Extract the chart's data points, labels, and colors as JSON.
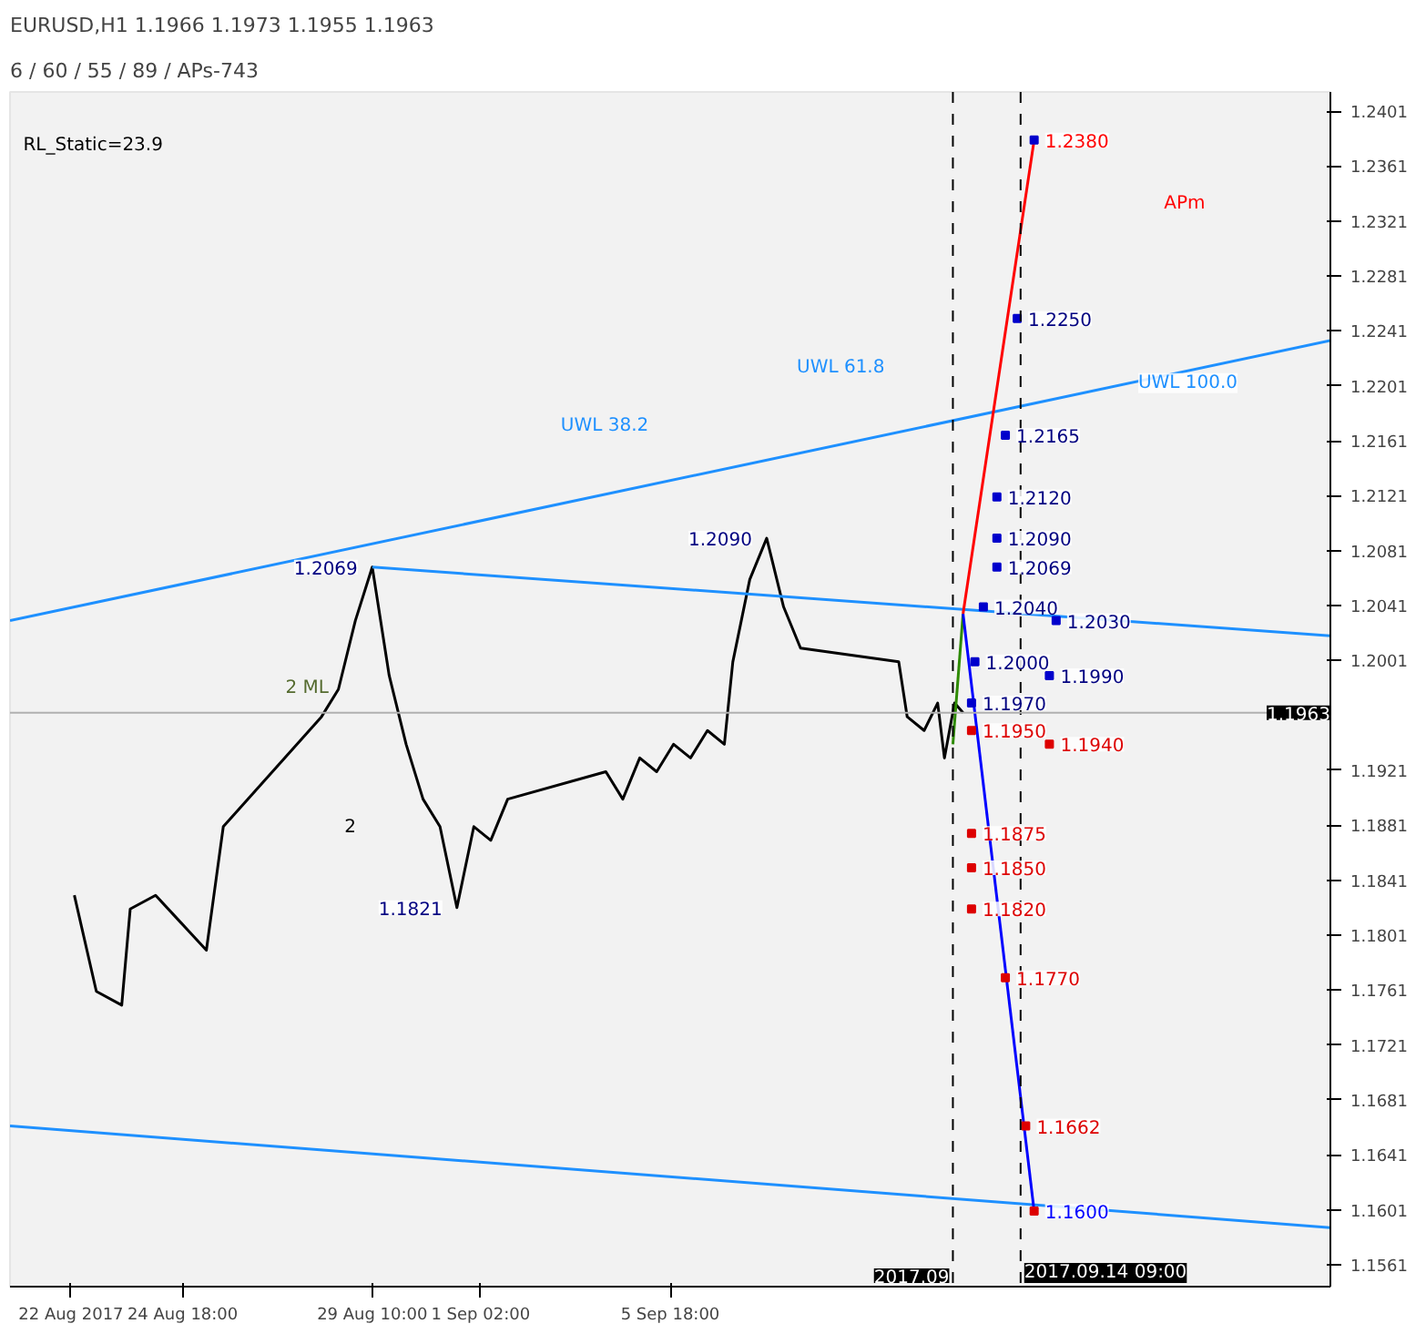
{
  "chart_data": {
    "type": "line",
    "title": "EURUSD,H1  1.1966 1.1973 1.1955 1.1963",
    "subtitle": "6 / 60 / 55 / 89 / APs-743",
    "xlim": [
      "2017-08-20T12:00",
      "2017-09-22T00:00"
    ],
    "xticks": [
      {
        "value": "2017-08-22T00:00",
        "label": "22 Aug 2017"
      },
      {
        "value": "2017-08-24T18:00",
        "label": "24 Aug 18:00"
      },
      {
        "value": "2017-08-29T10:00",
        "label": "29 Aug 10:00"
      },
      {
        "value": "2017-09-01T02:00",
        "label": "1 Sep 02:00"
      },
      {
        "value": "2017-09-05T18:00",
        "label": "5 Sep 18:00"
      }
    ],
    "ylim": [
      1.1545,
      1.2415
    ],
    "yticks": [
      1.2401,
      1.2361,
      1.2321,
      1.2281,
      1.2241,
      1.2201,
      1.2161,
      1.2121,
      1.2081,
      1.2041,
      1.2001,
      1.1921,
      1.1881,
      1.1841,
      1.1801,
      1.1761,
      1.1721,
      1.1681,
      1.1641,
      1.1601,
      1.1561
    ],
    "grid": false,
    "marker": "none",
    "line_style": "solid",
    "series": [
      {
        "color": "#000000",
        "x": [
          "2017-08-22T02:00",
          "2017-08-22T15:00",
          "2017-08-23T06:00",
          "2017-08-23T11:00",
          "2017-08-24T02:00",
          "2017-08-24T17:00",
          "2017-08-25T08:00",
          "2017-08-25T18:00",
          "2017-08-28T04:00",
          "2017-08-28T14:00",
          "2017-08-29T00:00",
          "2017-08-29T10:00",
          "2017-08-29T20:00",
          "2017-08-30T06:00",
          "2017-08-30T16:00",
          "2017-08-31T02:00",
          "2017-08-31T12:00",
          "2017-08-31T22:00",
          "2017-09-01T08:00",
          "2017-09-01T18:00",
          "2017-09-04T04:00",
          "2017-09-04T14:00",
          "2017-09-05T00:00",
          "2017-09-05T10:00",
          "2017-09-05T20:00",
          "2017-09-06T06:00",
          "2017-09-06T16:00",
          "2017-09-07T02:00",
          "2017-09-07T07:00",
          "2017-09-07T17:00",
          "2017-09-08T03:00",
          "2017-09-08T13:00",
          "2017-09-08T23:00",
          "2017-09-11T09:00",
          "2017-09-11T14:00",
          "2017-09-12T00:00",
          "2017-09-12T08:00",
          "2017-09-12T12:00",
          "2017-09-12T18:00",
          "2017-09-12T23:00"
        ],
        "values": [
          1.183,
          1.176,
          1.175,
          1.182,
          1.183,
          1.181,
          1.179,
          1.188,
          1.196,
          1.198,
          1.203,
          1.2069,
          1.199,
          1.194,
          1.19,
          1.188,
          1.1821,
          1.188,
          1.187,
          1.19,
          1.192,
          1.19,
          1.193,
          1.192,
          1.194,
          1.193,
          1.195,
          1.194,
          1.2,
          1.206,
          1.209,
          1.204,
          1.201,
          1.2,
          1.196,
          1.195,
          1.197,
          1.193,
          1.197,
          1.1963
        ]
      },
      {
        "color": "#1e90ff",
        "x": [
          "2017-08-20T12:00",
          "2017-09-22T00:00"
        ],
        "values": [
          1.203,
          1.2234
        ]
      },
      {
        "color": "#1e90ff",
        "x": [
          "2017-08-29T10:00",
          "2017-09-22T00:00"
        ],
        "values": [
          1.2069,
          1.2019
        ]
      },
      {
        "color": "#1e90ff",
        "x": [
          "2017-08-20T12:00",
          "2017-09-22T00:00"
        ],
        "values": [
          1.1662,
          1.1588
        ]
      },
      {
        "color": "#2e8b00",
        "x": [
          "2017-09-12T17:00",
          "2017-09-12T23:00"
        ],
        "values": [
          1.194,
          1.2035
        ]
      },
      {
        "color": "#ff0000",
        "x": [
          "2017-09-12T23:00",
          "2017-09-14T17:00"
        ],
        "values": [
          1.2035,
          1.238
        ]
      },
      {
        "color": "#0000ff",
        "x": [
          "2017-09-12T23:00",
          "2017-09-14T17:00"
        ],
        "values": [
          1.2035,
          1.16
        ]
      },
      {
        "type": "scatter",
        "marker": "square",
        "color": "#0000cc",
        "x": [
          "2017-09-14T17:00",
          "2017-09-14T07:00",
          "2017-09-14T00:00",
          "2017-09-13T19:00",
          "2017-09-13T19:00",
          "2017-09-13T19:00",
          "2017-09-13T11:00",
          "2017-09-15T06:00",
          "2017-09-13T06:00",
          "2017-09-15T02:00",
          "2017-09-13T04:00"
        ],
        "values": [
          1.238,
          1.225,
          1.2165,
          1.212,
          1.209,
          1.2069,
          1.204,
          1.203,
          1.2,
          1.199,
          1.197
        ]
      },
      {
        "type": "scatter",
        "marker": "square",
        "color": "#dd0000",
        "x": [
          "2017-09-13T04:00",
          "2017-09-15T02:00",
          "2017-09-13T04:00",
          "2017-09-13T04:00",
          "2017-09-13T04:00",
          "2017-09-14T00:00",
          "2017-09-14T12:00",
          "2017-09-14T17:00"
        ],
        "values": [
          1.195,
          1.194,
          1.1875,
          1.185,
          1.182,
          1.177,
          1.1662,
          1.16
        ]
      }
    ],
    "ref_lines": [
      {
        "axis": "x",
        "value": "2017-09-12T17:00",
        "label": "2017.09",
        "line_style": "dashed",
        "color": "#000000"
      },
      {
        "axis": "x",
        "value": "2017-09-14T09:00",
        "label": "2017.09.14 09:00",
        "line_style": "dashed",
        "color": "#000000"
      },
      {
        "axis": "y",
        "value": 1.1963,
        "label": "1.1963",
        "color": "#b0b0b0"
      }
    ],
    "annotations": [
      "RL_Static=23.9",
      "APm",
      "UWL 61.8",
      "UWL 38.2",
      "2 ML",
      "2",
      {
        "text": "UWL 100.0",
        "x": "2017-09-17T00:00",
        "y": 1.2203
      },
      {
        "text": "1.2069",
        "x": "2017-08-29T10:00",
        "y": 1.2069
      },
      {
        "text": "1.2090",
        "x": "2017-09-08T03:00",
        "y": 1.209
      },
      {
        "text": "1.1821",
        "x": "2017-08-31T12:00",
        "y": 1.1821
      },
      {
        "text": "1.2380",
        "x": "2017-09-14T17:00",
        "y": 1.238
      },
      {
        "text": "1.2250",
        "x": "2017-09-14T07:00",
        "y": 1.225
      },
      {
        "text": "1.2165",
        "x": "2017-09-14T00:00",
        "y": 1.2165
      },
      {
        "text": "1.2120",
        "x": "2017-09-13T19:00",
        "y": 1.212
      },
      {
        "text": "1.2090",
        "x": "2017-09-13T19:00",
        "y": 1.209
      },
      {
        "text": "1.2069",
        "x": "2017-09-13T19:00",
        "y": 1.2069
      },
      {
        "text": "1.2040",
        "x": "2017-09-13T11:00",
        "y": 1.204
      },
      {
        "text": "1.2030",
        "x": "2017-09-15T06:00",
        "y": 1.203
      },
      {
        "text": "1.2000",
        "x": "2017-09-13T06:00",
        "y": 1.2
      },
      {
        "text": "1.1990",
        "x": "2017-09-15T02:00",
        "y": 1.199
      },
      {
        "text": "1.1970",
        "x": "2017-09-13T04:00",
        "y": 1.197
      },
      {
        "text": "1.1950",
        "x": "2017-09-13T04:00",
        "y": 1.195
      },
      {
        "text": "1.1940",
        "x": "2017-09-15T02:00",
        "y": 1.194
      },
      {
        "text": "1.1875",
        "x": "2017-09-13T04:00",
        "y": 1.1875
      },
      {
        "text": "1.1850",
        "x": "2017-09-13T04:00",
        "y": 1.185
      },
      {
        "text": "1.1820",
        "x": "2017-09-13T04:00",
        "y": 1.182
      },
      {
        "text": "1.1770",
        "x": "2017-09-14T00:00",
        "y": 1.177
      },
      {
        "text": "1.1662",
        "x": "2017-09-14T12:00",
        "y": 1.1662
      },
      {
        "text": "1.1600",
        "x": "2017-09-14T17:00",
        "y": 1.16
      }
    ]
  }
}
